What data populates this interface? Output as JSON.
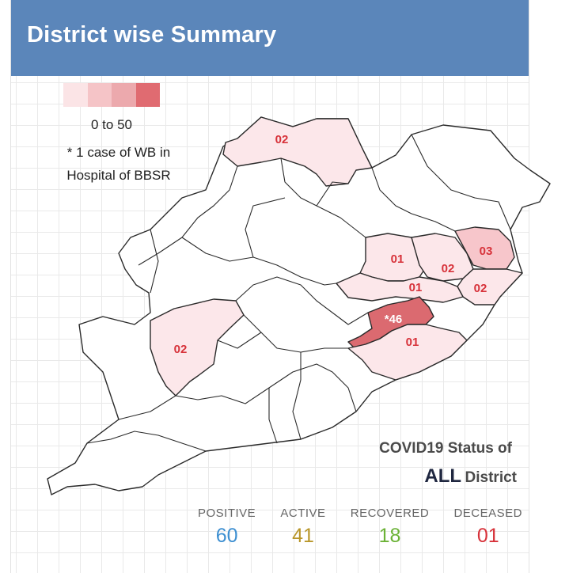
{
  "header": {
    "title": "District wise Summary"
  },
  "legend": {
    "colors": [
      "#fbe4e6",
      "#f5c4c7",
      "#eca9ad",
      "#e06b71"
    ],
    "range": "0 to 50",
    "note_line1": "* 1 case of WB in",
    "note_line2": "Hospital of BBSR"
  },
  "map": {
    "district_labels": [
      "02",
      "01",
      "02",
      "03",
      "01",
      "02",
      "*46",
      "01",
      "02"
    ],
    "colors": {
      "light": "#fce7ea",
      "mid": "#f7c6cb",
      "dark": "#db6a70",
      "empty": "#ffffff",
      "border": "#2a2a2a",
      "label": "#d7323a"
    }
  },
  "status": {
    "title": "COVID19 Status of",
    "all": "ALL",
    "district": "District"
  },
  "stats": [
    {
      "label": "POSITIVE",
      "value": "60",
      "color": "#3d8fd1"
    },
    {
      "label": "ACTIVE",
      "value": "41",
      "color": "#b8962a"
    },
    {
      "label": "RECOVERED",
      "value": "18",
      "color": "#6bb236"
    },
    {
      "label": "DECEASED",
      "value": "01",
      "color": "#d7323a"
    }
  ]
}
